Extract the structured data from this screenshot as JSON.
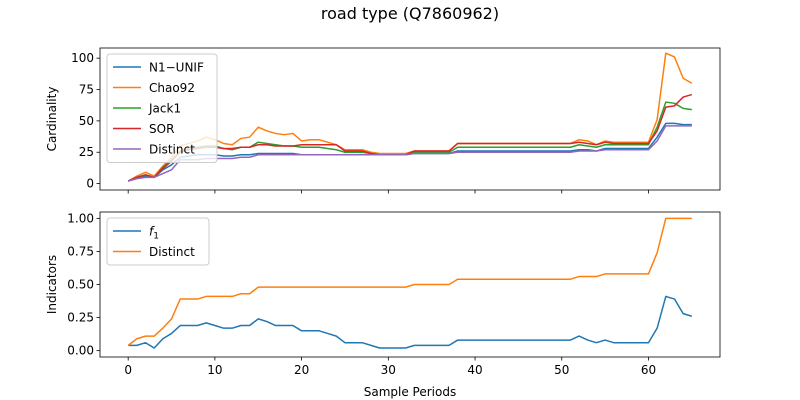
{
  "title": "road type (Q7860962)",
  "chart_data": [
    {
      "type": "line",
      "ylabel": "Cardinality",
      "xlim": [
        -3.25,
        68.25
      ],
      "ylim": [
        -5.1,
        108.1
      ],
      "yticks": [
        0,
        25,
        50,
        75,
        100
      ],
      "xticks": [
        0,
        10,
        20,
        30,
        40,
        50,
        60
      ],
      "show_xticklabels": false,
      "legend": "top-left",
      "x": [
        0,
        1,
        2,
        3,
        4,
        5,
        6,
        7,
        8,
        9,
        10,
        11,
        12,
        13,
        14,
        15,
        16,
        17,
        18,
        19,
        20,
        21,
        22,
        23,
        24,
        25,
        26,
        27,
        28,
        29,
        30,
        31,
        32,
        33,
        34,
        35,
        36,
        37,
        38,
        39,
        40,
        41,
        42,
        43,
        44,
        45,
        46,
        47,
        48,
        49,
        50,
        51,
        52,
        53,
        54,
        55,
        56,
        57,
        58,
        59,
        60,
        61,
        62,
        63,
        64,
        65
      ],
      "series": [
        {
          "name": "N1−UNIF",
          "color": "#1f77b4",
          "values": [
            2,
            4,
            6,
            5,
            11,
            15,
            21,
            22,
            23,
            23,
            23,
            22,
            22,
            23,
            23,
            24,
            24,
            24,
            24,
            24,
            23,
            23,
            23,
            23,
            23,
            23,
            23,
            23,
            23,
            23,
            23,
            23,
            23,
            24,
            24,
            24,
            24,
            24,
            26,
            26,
            26,
            26,
            26,
            26,
            26,
            26,
            26,
            26,
            26,
            26,
            26,
            26,
            27,
            27,
            26,
            28,
            28,
            28,
            28,
            28,
            28,
            37,
            48,
            48,
            47,
            47
          ]
        },
        {
          "name": "Chao92",
          "color": "#ff7f0e",
          "values": [
            2,
            6,
            9,
            6,
            14,
            21,
            30,
            32,
            34,
            37,
            35,
            32,
            31,
            36,
            37,
            45,
            42,
            40,
            39,
            40,
            34,
            35,
            35,
            33,
            31,
            27,
            27,
            27,
            25,
            24,
            24,
            24,
            24,
            26,
            26,
            26,
            26,
            26,
            32,
            32,
            32,
            32,
            32,
            32,
            32,
            32,
            32,
            32,
            32,
            32,
            32,
            32,
            35,
            34,
            31,
            34,
            33,
            33,
            33,
            33,
            33,
            51,
            104,
            101,
            84,
            80
          ]
        },
        {
          "name": "Jack1",
          "color": "#2ca02c",
          "values": [
            2,
            5,
            7,
            5,
            13,
            19,
            26,
            28,
            29,
            30,
            30,
            28,
            27,
            29,
            29,
            33,
            32,
            31,
            30,
            30,
            29,
            29,
            29,
            28,
            27,
            25,
            25,
            25,
            24,
            23,
            23,
            23,
            23,
            25,
            25,
            25,
            25,
            25,
            29,
            29,
            29,
            29,
            29,
            29,
            29,
            29,
            29,
            29,
            29,
            29,
            29,
            29,
            31,
            30,
            29,
            31,
            31,
            31,
            31,
            31,
            31,
            45,
            65,
            64,
            60,
            59
          ]
        },
        {
          "name": "SOR",
          "color": "#d62728",
          "values": [
            2,
            5,
            7,
            5,
            12,
            18,
            25,
            27,
            28,
            29,
            29,
            28,
            28,
            29,
            29,
            31,
            31,
            30,
            30,
            30,
            31,
            31,
            31,
            31,
            31,
            26,
            26,
            26,
            24,
            23,
            23,
            23,
            23,
            26,
            26,
            26,
            26,
            26,
            32,
            32,
            32,
            32,
            32,
            32,
            32,
            32,
            32,
            32,
            32,
            32,
            32,
            32,
            33,
            32,
            31,
            33,
            32,
            32,
            32,
            32,
            32,
            42,
            61,
            62,
            69,
            71
          ]
        },
        {
          "name": "Distinct",
          "color": "#9467bd",
          "values": [
            2,
            4,
            5,
            5,
            8,
            11,
            19,
            19,
            19,
            20,
            20,
            20,
            20,
            21,
            21,
            23,
            23,
            23,
            23,
            23,
            23,
            23,
            23,
            23,
            23,
            23,
            23,
            23,
            23,
            23,
            23,
            23,
            23,
            24,
            24,
            24,
            24,
            24,
            25,
            25,
            25,
            25,
            25,
            25,
            25,
            25,
            25,
            25,
            25,
            25,
            25,
            25,
            26,
            26,
            26,
            27,
            27,
            27,
            27,
            27,
            27,
            34,
            46,
            46,
            46,
            46
          ]
        }
      ]
    },
    {
      "type": "line",
      "xlabel": "Sample Periods",
      "ylabel": "Indicators",
      "xlim": [
        -3.25,
        68.25
      ],
      "ylim": [
        -0.048,
        1.048
      ],
      "yticks": [
        0.0,
        0.25,
        0.5,
        0.75,
        1.0
      ],
      "yticklabels": [
        "0.00",
        "0.25",
        "0.50",
        "0.75",
        "1.00"
      ],
      "xticks": [
        0,
        10,
        20,
        30,
        40,
        50,
        60
      ],
      "xticklabels": [
        "0",
        "10",
        "20",
        "30",
        "40",
        "50",
        "60"
      ],
      "legend": "top-left",
      "x": [
        0,
        1,
        2,
        3,
        4,
        5,
        6,
        7,
        8,
        9,
        10,
        11,
        12,
        13,
        14,
        15,
        16,
        17,
        18,
        19,
        20,
        21,
        22,
        23,
        24,
        25,
        26,
        27,
        28,
        29,
        30,
        31,
        32,
        33,
        34,
        35,
        36,
        37,
        38,
        39,
        40,
        41,
        42,
        43,
        44,
        45,
        46,
        47,
        48,
        49,
        50,
        51,
        52,
        53,
        54,
        55,
        56,
        57,
        58,
        59,
        60,
        61,
        62,
        63,
        64,
        65
      ],
      "series": [
        {
          "name": "f1",
          "label_main": "f",
          "label_sub": "1",
          "color": "#1f77b4",
          "values": [
            0.04,
            0.04,
            0.06,
            0.02,
            0.09,
            0.13,
            0.19,
            0.19,
            0.19,
            0.21,
            0.19,
            0.17,
            0.17,
            0.19,
            0.19,
            0.24,
            0.22,
            0.19,
            0.19,
            0.19,
            0.15,
            0.15,
            0.15,
            0.13,
            0.11,
            0.06,
            0.06,
            0.06,
            0.04,
            0.02,
            0.02,
            0.02,
            0.02,
            0.04,
            0.04,
            0.04,
            0.04,
            0.04,
            0.08,
            0.08,
            0.08,
            0.08,
            0.08,
            0.08,
            0.08,
            0.08,
            0.08,
            0.08,
            0.08,
            0.08,
            0.08,
            0.08,
            0.11,
            0.08,
            0.06,
            0.08,
            0.06,
            0.06,
            0.06,
            0.06,
            0.06,
            0.17,
            0.41,
            0.39,
            0.28,
            0.26
          ]
        },
        {
          "name": "Distinct",
          "color": "#ff7f0e",
          "values": [
            0.04,
            0.09,
            0.11,
            0.11,
            0.17,
            0.24,
            0.39,
            0.39,
            0.39,
            0.41,
            0.41,
            0.41,
            0.41,
            0.43,
            0.43,
            0.48,
            0.48,
            0.48,
            0.48,
            0.48,
            0.48,
            0.48,
            0.48,
            0.48,
            0.48,
            0.48,
            0.48,
            0.48,
            0.48,
            0.48,
            0.48,
            0.48,
            0.48,
            0.5,
            0.5,
            0.5,
            0.5,
            0.5,
            0.54,
            0.54,
            0.54,
            0.54,
            0.54,
            0.54,
            0.54,
            0.54,
            0.54,
            0.54,
            0.54,
            0.54,
            0.54,
            0.54,
            0.56,
            0.56,
            0.56,
            0.58,
            0.58,
            0.58,
            0.58,
            0.58,
            0.58,
            0.74,
            1.0,
            1.0,
            1.0,
            1.0
          ]
        }
      ]
    }
  ]
}
